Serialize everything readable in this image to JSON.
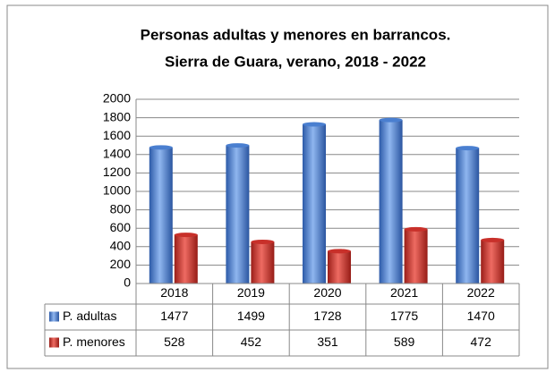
{
  "chart_data": {
    "type": "bar",
    "title": [
      "Personas  adultas y menores en barrancos.",
      "Sierra de Guara, verano, 2018  - 2022"
    ],
    "categories": [
      "2018",
      "2019",
      "2020",
      "2021",
      "2022"
    ],
    "series": [
      {
        "name": "P. adultas",
        "color": "#4a7fd0",
        "values": [
          1477,
          1499,
          1728,
          1775,
          1470
        ]
      },
      {
        "name": "P. menores",
        "color": "#c8302a",
        "values": [
          528,
          452,
          351,
          589,
          472
        ]
      }
    ],
    "ylim": [
      0,
      2000
    ],
    "yticks": [
      0,
      200,
      400,
      600,
      800,
      1000,
      1200,
      1400,
      1600,
      1800,
      2000
    ],
    "grid": true,
    "data_table": true
  }
}
